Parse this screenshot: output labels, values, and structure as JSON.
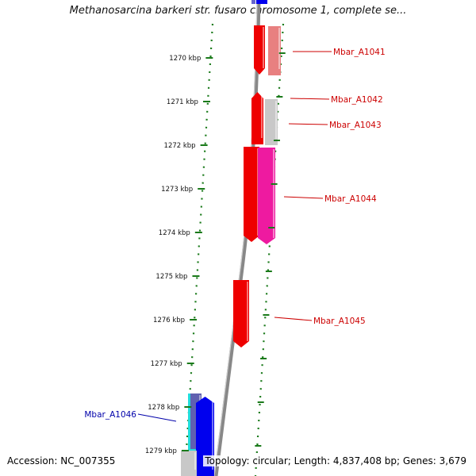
{
  "title": "Methanosarcina barkeri str. fusaro chromosome 1, complete se...",
  "footer": {
    "accession": "Accession: NC_007355",
    "summary": "Topology: circular; Length: 4,837,408 bp; Genes: 3,679"
  },
  "ruler": {
    "unit_label": "kbp",
    "ticks": [
      {
        "kbp": 1270,
        "label": "1270 kbp"
      },
      {
        "kbp": 1271,
        "label": "1271 kbp"
      },
      {
        "kbp": 1272,
        "label": "1272 kbp"
      },
      {
        "kbp": 1273,
        "label": "1273 kbp"
      },
      {
        "kbp": 1274,
        "label": "1274 kbp"
      },
      {
        "kbp": 1275,
        "label": "1275 kbp"
      },
      {
        "kbp": 1276,
        "label": "1276 kbp"
      },
      {
        "kbp": 1277,
        "label": "1277 kbp"
      },
      {
        "kbp": 1278,
        "label": "1278 kbp"
      },
      {
        "kbp": 1279,
        "label": "1279 kbp"
      }
    ]
  },
  "genes": [
    {
      "name": "Mbar_A1041",
      "strand": "reverse",
      "label_color": "#cc0000"
    },
    {
      "name": "Mbar_A1042",
      "strand": "reverse",
      "label_color": "#cc0000"
    },
    {
      "name": "Mbar_A1043",
      "strand": "reverse",
      "label_color": "#cc0000"
    },
    {
      "name": "Mbar_A1044",
      "strand": "reverse",
      "label_color": "#cc0000"
    },
    {
      "name": "Mbar_A1045",
      "strand": "reverse",
      "label_color": "#cc0000"
    },
    {
      "name": "Mbar_A1046",
      "strand": "forward",
      "label_color": "#0000aa"
    }
  ],
  "colors": {
    "reverse_gene": "#ee0000",
    "reverse_gene_light": "#e88080",
    "pink_gene": "#ee1aa0",
    "gray_gene": "#c8c8c8",
    "forward_gene": "#0000ee",
    "cyan_gene": "#22dddd",
    "backbone": "#888888",
    "dotted_track": "#1a7a1a",
    "tick": "#1a7a1a"
  }
}
